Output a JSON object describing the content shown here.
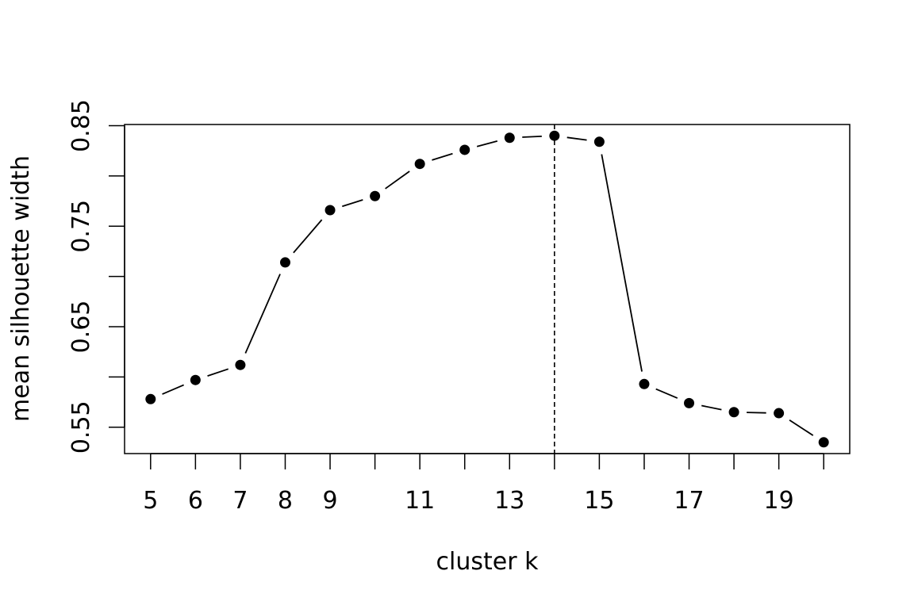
{
  "chart_data": {
    "type": "line",
    "title": "",
    "xlabel": "cluster k",
    "ylabel": "mean silhouette width",
    "x": [
      5,
      6,
      7,
      8,
      9,
      10,
      11,
      12,
      13,
      14,
      15,
      16,
      17,
      18,
      19,
      20
    ],
    "series": [
      {
        "values": [
          0.578,
          0.597,
          0.612,
          0.714,
          0.766,
          0.78,
          0.812,
          0.826,
          0.838,
          0.84,
          0.834,
          0.593,
          0.574,
          0.565,
          0.564,
          0.535
        ]
      }
    ],
    "xticks": [
      5,
      6,
      7,
      8,
      9,
      10,
      11,
      12,
      13,
      14,
      15,
      16,
      17,
      18,
      19,
      20
    ],
    "xtick_labels": [
      {
        "x": 5,
        "label": "5"
      },
      {
        "x": 6,
        "label": "6"
      },
      {
        "x": 7,
        "label": "7"
      },
      {
        "x": 8,
        "label": "8"
      },
      {
        "x": 9,
        "label": "9"
      },
      {
        "x": 11,
        "label": "11"
      },
      {
        "x": 13,
        "label": "13"
      },
      {
        "x": 15,
        "label": "15"
      },
      {
        "x": 17,
        "label": "17"
      },
      {
        "x": 19,
        "label": "19"
      }
    ],
    "yticks": [
      0.55,
      0.6,
      0.65,
      0.7,
      0.75,
      0.8,
      0.85
    ],
    "ytick_labels": [
      {
        "y": 0.55,
        "label": "0.55"
      },
      {
        "y": 0.65,
        "label": "0.65"
      },
      {
        "y": 0.75,
        "label": "0.75"
      },
      {
        "y": 0.85,
        "label": "0.85"
      }
    ],
    "xlim": [
      4.42,
      20.58
    ],
    "ylim": [
      0.5238,
      0.8512
    ],
    "vline": {
      "x": 14,
      "style": "dashed"
    },
    "line_style": "overplotted points and line (type b)",
    "grid": false,
    "legend": "none",
    "colors": {
      "line": "#000000",
      "points": "#000000",
      "background": "#ffffff"
    }
  }
}
